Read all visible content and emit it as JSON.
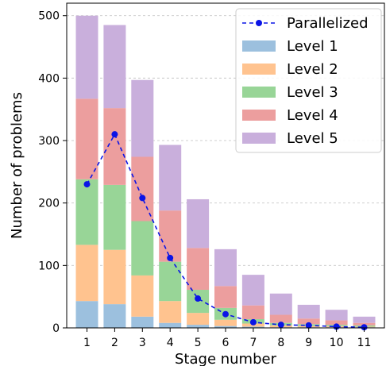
{
  "chart_data": {
    "type": "bar",
    "stacked": true,
    "title": "",
    "xlabel": "Stage number",
    "ylabel": "Number of problems",
    "categories": [
      "1",
      "2",
      "3",
      "4",
      "5",
      "6",
      "7",
      "8",
      "9",
      "10",
      "11"
    ],
    "ylim": [
      0,
      520
    ],
    "yticks": [
      0,
      100,
      200,
      300,
      400,
      500
    ],
    "grid": "horizontal dashed",
    "legend_position": "top-right",
    "series": [
      {
        "name": "Level 1",
        "color": "#9cc0de",
        "values": [
          43,
          38,
          18,
          8,
          5,
          3,
          2,
          1,
          1,
          1,
          1
        ]
      },
      {
        "name": "Level 2",
        "color": "#ffc38f",
        "values": [
          90,
          87,
          66,
          35,
          19,
          10,
          5,
          3,
          2,
          2,
          1
        ]
      },
      {
        "name": "Level 3",
        "color": "#98d597",
        "values": [
          105,
          104,
          87,
          63,
          37,
          19,
          7,
          4,
          3,
          2,
          2
        ]
      },
      {
        "name": "Level 4",
        "color": "#ec9e9e",
        "values": [
          129,
          123,
          103,
          82,
          67,
          35,
          22,
          13,
          9,
          7,
          4
        ]
      },
      {
        "name": "Level 5",
        "color": "#c9afdc",
        "values": [
          133,
          133,
          123,
          105,
          78,
          59,
          49,
          34,
          22,
          17,
          10
        ]
      }
    ],
    "line_series": {
      "name": "Parallelized",
      "color": "#0a14e6",
      "style": "dashed",
      "marker": "circle",
      "values": [
        230,
        310,
        208,
        112,
        47,
        22,
        9,
        5,
        4,
        2,
        1
      ]
    }
  }
}
